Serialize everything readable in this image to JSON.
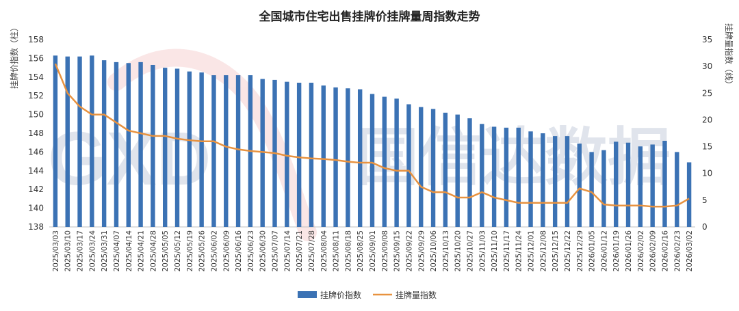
{
  "chart_data": {
    "type": "bar",
    "title": "全国城市住宅出售挂牌价挂牌量周指数走势",
    "ylabel": "挂牌价指数（柱）",
    "y2label": "挂牌量指数（线）",
    "ylim": [
      138,
      158
    ],
    "y2lim": [
      0,
      35
    ],
    "yticks": [
      138,
      140,
      142,
      144,
      146,
      148,
      150,
      152,
      154,
      156,
      158
    ],
    "y2ticks": [
      0,
      5,
      10,
      15,
      20,
      25,
      30,
      35
    ],
    "grid": false,
    "legend_position": "bottom",
    "x": [
      "2025/03/03",
      "2025/03/10",
      "2025/03/17",
      "2025/03/24",
      "2025/03/31",
      "2025/04/07",
      "2025/04/14",
      "2025/04/21",
      "2025/04/28",
      "2025/05/05",
      "2025/05/12",
      "2025/05/19",
      "2025/05/26",
      "2025/06/02",
      "2025/06/09",
      "2025/06/16",
      "2025/06/23",
      "2025/06/30",
      "2025/07/07",
      "2025/07/14",
      "2025/07/21",
      "2025/07/28",
      "2025/08/04",
      "2025/08/11",
      "2025/08/18",
      "2025/08/25",
      "2025/09/01",
      "2025/09/08",
      "2025/09/15",
      "2025/09/22",
      "2025/09/29",
      "2025/10/06",
      "2025/10/13",
      "2025/10/20",
      "2025/10/27",
      "2025/11/03",
      "2025/11/10",
      "2025/11/17",
      "2025/11/24",
      "2025/12/01",
      "2025/12/08",
      "2025/12/15",
      "2025/12/22",
      "2025/12/29",
      "2026/01/05",
      "2026/01/12",
      "2026/01/19",
      "2026/01/26",
      "2026/02/02",
      "2026/02/09",
      "2026/02/16",
      "2026/02/23",
      "2026/03/02"
    ],
    "series": [
      {
        "name": "挂牌价指数",
        "type": "bar",
        "axis": "left",
        "color": "#3b72b4",
        "values": [
          156.3,
          156.2,
          156.2,
          156.3,
          155.8,
          155.6,
          155.5,
          155.6,
          155.3,
          155.0,
          154.9,
          154.6,
          154.5,
          154.2,
          154.2,
          154.2,
          154.2,
          153.8,
          153.7,
          153.5,
          153.4,
          153.4,
          153.1,
          152.9,
          152.8,
          152.7,
          152.2,
          151.9,
          151.7,
          151.1,
          150.8,
          150.6,
          150.2,
          150.0,
          149.6,
          149.0,
          148.7,
          148.6,
          148.6,
          148.2,
          148.0,
          147.7,
          147.7,
          146.9,
          146.0,
          146.2,
          147.1,
          147.0,
          146.6,
          146.8,
          147.2,
          146.0,
          144.9
        ]
      },
      {
        "name": "挂牌量指数",
        "type": "line",
        "axis": "right",
        "color": "#e8923f",
        "values": [
          30.5,
          25.0,
          22.5,
          21.0,
          21.0,
          19.5,
          18.0,
          17.5,
          17.0,
          17.0,
          16.5,
          16.2,
          16.0,
          16.0,
          15.0,
          14.5,
          14.2,
          14.0,
          13.8,
          13.3,
          13.0,
          12.8,
          12.7,
          12.5,
          12.2,
          12.0,
          12.0,
          11.0,
          10.5,
          10.5,
          7.5,
          6.5,
          6.5,
          5.5,
          5.5,
          6.5,
          5.5,
          5.0,
          4.5,
          4.5,
          4.5,
          4.5,
          4.5,
          7.2,
          6.5,
          4.2,
          4.0,
          4.0,
          4.0,
          3.8,
          3.8,
          4.0,
          5.3
        ]
      }
    ]
  },
  "watermark": {
    "logo": "GXD",
    "text": "国信达数据"
  }
}
